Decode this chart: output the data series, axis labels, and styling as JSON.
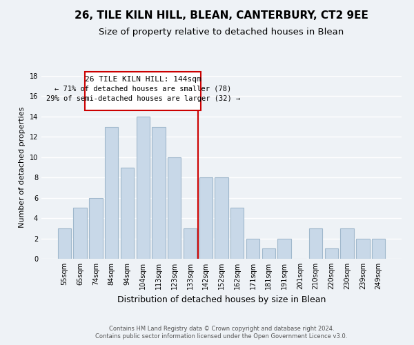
{
  "title": "26, TILE KILN HILL, BLEAN, CANTERBURY, CT2 9EE",
  "subtitle": "Size of property relative to detached houses in Blean",
  "xlabel": "Distribution of detached houses by size in Blean",
  "ylabel": "Number of detached properties",
  "bar_labels": [
    "55sqm",
    "65sqm",
    "74sqm",
    "84sqm",
    "94sqm",
    "104sqm",
    "113sqm",
    "123sqm",
    "133sqm",
    "142sqm",
    "152sqm",
    "162sqm",
    "171sqm",
    "181sqm",
    "191sqm",
    "201sqm",
    "210sqm",
    "220sqm",
    "230sqm",
    "239sqm",
    "249sqm"
  ],
  "bar_values": [
    3,
    5,
    6,
    13,
    9,
    14,
    13,
    10,
    3,
    8,
    8,
    5,
    2,
    1,
    2,
    0,
    3,
    1,
    3,
    2,
    2
  ],
  "bar_color": "#c8d8e8",
  "bar_edge_color": "#a0b8cc",
  "highlight_index": 9,
  "vline_color": "#cc0000",
  "ylim": [
    0,
    18
  ],
  "yticks": [
    0,
    2,
    4,
    6,
    8,
    10,
    12,
    14,
    16,
    18
  ],
  "annotation_title": "26 TILE KILN HILL: 144sqm",
  "annotation_line1": "← 71% of detached houses are smaller (78)",
  "annotation_line2": "29% of semi-detached houses are larger (32) →",
  "annotation_box_color": "#ffffff",
  "annotation_box_edge": "#cc0000",
  "footer_line1": "Contains HM Land Registry data © Crown copyright and database right 2024.",
  "footer_line2": "Contains public sector information licensed under the Open Government Licence v3.0.",
  "background_color": "#eef2f6",
  "grid_color": "#ffffff",
  "title_fontsize": 11,
  "subtitle_fontsize": 9.5,
  "xlabel_fontsize": 9,
  "ylabel_fontsize": 8,
  "tick_fontsize": 7,
  "footer_fontsize": 6,
  "annot_title_fontsize": 8,
  "annot_body_fontsize": 7.5
}
